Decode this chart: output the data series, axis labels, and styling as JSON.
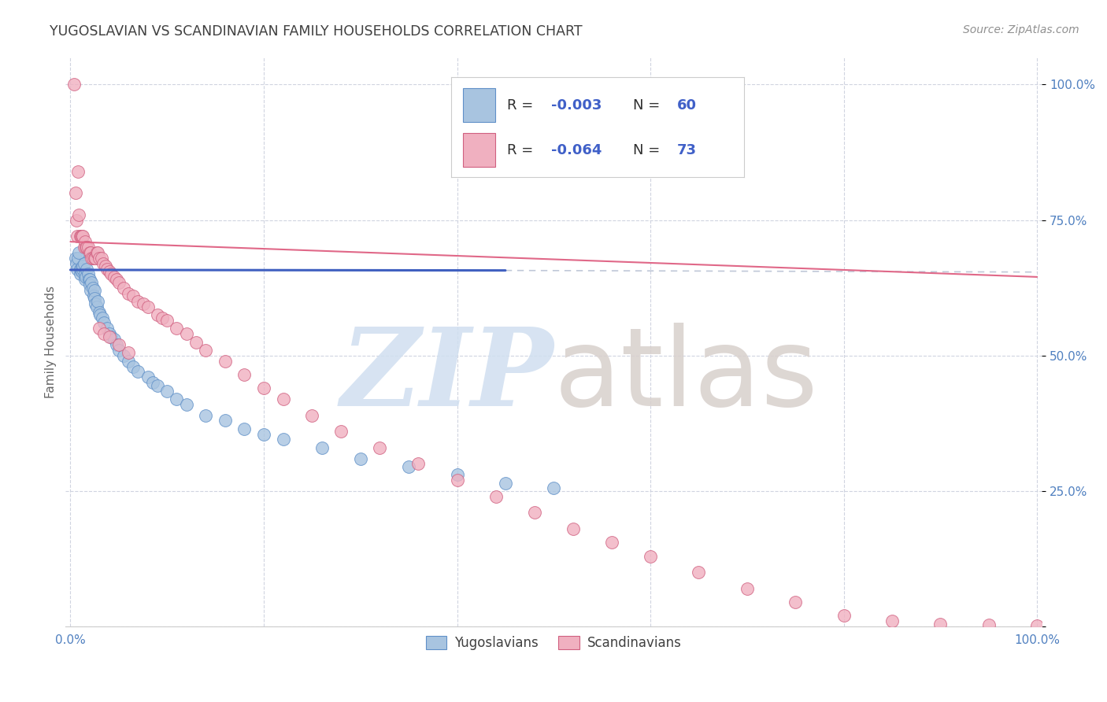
{
  "title": "YUGOSLAVIAN VS SCANDINAVIAN FAMILY HOUSEHOLDS CORRELATION CHART",
  "source": "Source: ZipAtlas.com",
  "ylabel": "Family Households",
  "blue_color": "#a8c4e0",
  "pink_color": "#f0b0c0",
  "blue_edge_color": "#6090c8",
  "pink_edge_color": "#d06080",
  "blue_trend_color": "#4060c0",
  "pink_trend_color": "#e06888",
  "dashed_color": "#c0c8d8",
  "grid_color": "#d0d4e0",
  "axis_label_color": "#5080c0",
  "title_color": "#404040",
  "source_color": "#909090",
  "watermark_zip_color": "#d0dff0",
  "watermark_atlas_color": "#d8d0cc",
  "blue_x": [
    0.005,
    0.006,
    0.007,
    0.008,
    0.009,
    0.01,
    0.01,
    0.011,
    0.012,
    0.013,
    0.013,
    0.014,
    0.015,
    0.015,
    0.016,
    0.017,
    0.018,
    0.019,
    0.02,
    0.02,
    0.021,
    0.022,
    0.023,
    0.024,
    0.025,
    0.025,
    0.026,
    0.027,
    0.028,
    0.03,
    0.031,
    0.033,
    0.035,
    0.038,
    0.04,
    0.042,
    0.045,
    0.048,
    0.05,
    0.055,
    0.06,
    0.065,
    0.07,
    0.08,
    0.085,
    0.09,
    0.1,
    0.11,
    0.12,
    0.14,
    0.16,
    0.18,
    0.2,
    0.22,
    0.26,
    0.3,
    0.35,
    0.4,
    0.45,
    0.5
  ],
  "blue_y": [
    0.68,
    0.67,
    0.66,
    0.68,
    0.69,
    0.65,
    0.66,
    0.66,
    0.655,
    0.66,
    0.665,
    0.67,
    0.64,
    0.65,
    0.645,
    0.66,
    0.65,
    0.64,
    0.64,
    0.63,
    0.62,
    0.635,
    0.625,
    0.61,
    0.62,
    0.605,
    0.595,
    0.59,
    0.6,
    0.58,
    0.575,
    0.57,
    0.56,
    0.55,
    0.54,
    0.535,
    0.53,
    0.52,
    0.51,
    0.5,
    0.49,
    0.48,
    0.47,
    0.46,
    0.45,
    0.445,
    0.435,
    0.42,
    0.41,
    0.39,
    0.38,
    0.365,
    0.355,
    0.345,
    0.33,
    0.31,
    0.295,
    0.28,
    0.265,
    0.255
  ],
  "pink_x": [
    0.004,
    0.005,
    0.006,
    0.007,
    0.008,
    0.009,
    0.01,
    0.011,
    0.012,
    0.013,
    0.014,
    0.015,
    0.016,
    0.017,
    0.018,
    0.02,
    0.021,
    0.022,
    0.023,
    0.025,
    0.026,
    0.027,
    0.028,
    0.03,
    0.032,
    0.034,
    0.036,
    0.038,
    0.04,
    0.042,
    0.045,
    0.048,
    0.05,
    0.055,
    0.06,
    0.065,
    0.07,
    0.075,
    0.08,
    0.09,
    0.095,
    0.1,
    0.11,
    0.12,
    0.13,
    0.14,
    0.16,
    0.18,
    0.2,
    0.22,
    0.25,
    0.28,
    0.32,
    0.36,
    0.4,
    0.44,
    0.48,
    0.52,
    0.56,
    0.6,
    0.65,
    0.7,
    0.75,
    0.8,
    0.85,
    0.9,
    0.95,
    1.0,
    0.03,
    0.035,
    0.04,
    0.05,
    0.06
  ],
  "pink_y": [
    1.0,
    0.8,
    0.75,
    0.72,
    0.84,
    0.76,
    0.72,
    0.72,
    0.72,
    0.72,
    0.7,
    0.71,
    0.7,
    0.7,
    0.7,
    0.69,
    0.69,
    0.68,
    0.68,
    0.68,
    0.68,
    0.69,
    0.69,
    0.68,
    0.68,
    0.67,
    0.665,
    0.66,
    0.655,
    0.65,
    0.645,
    0.64,
    0.635,
    0.625,
    0.615,
    0.61,
    0.6,
    0.595,
    0.59,
    0.575,
    0.57,
    0.565,
    0.55,
    0.54,
    0.525,
    0.51,
    0.49,
    0.465,
    0.44,
    0.42,
    0.39,
    0.36,
    0.33,
    0.3,
    0.27,
    0.24,
    0.21,
    0.18,
    0.155,
    0.13,
    0.1,
    0.07,
    0.045,
    0.02,
    0.01,
    0.005,
    0.003,
    0.002,
    0.55,
    0.54,
    0.535,
    0.52,
    0.505
  ],
  "blue_trend_x": [
    0.0,
    0.45
  ],
  "blue_trend_y": [
    0.658,
    0.657
  ],
  "pink_trend_x": [
    0.0,
    1.0
  ],
  "pink_trend_y": [
    0.71,
    0.645
  ],
  "dashed_trend_x": [
    0.45,
    1.0
  ],
  "dashed_trend_y": [
    0.657,
    0.654
  ],
  "xmin": -0.005,
  "xmax": 1.005,
  "ymin": 0.0,
  "ymax": 1.05,
  "ytick_positions": [
    0.0,
    0.25,
    0.5,
    0.75,
    1.0
  ],
  "ytick_labels": [
    "",
    "25.0%",
    "50.0%",
    "75.0%",
    "100.0%"
  ]
}
